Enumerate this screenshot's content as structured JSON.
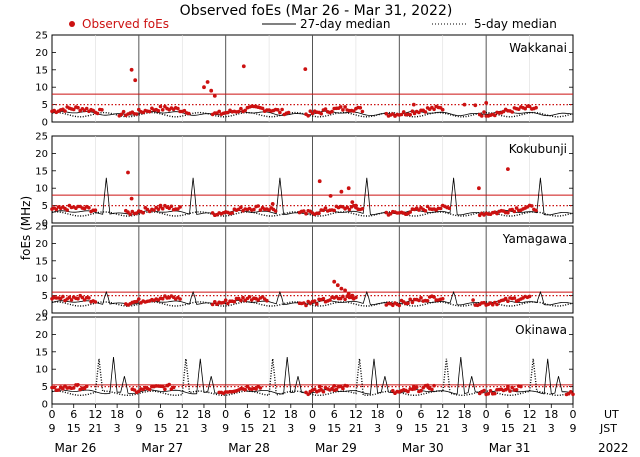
{
  "title": "Observed foEs (Mar 26 - Mar 31, 2022)",
  "legend": {
    "observed": "Observed foEs",
    "median27": "27-day median",
    "median5": "5-day median"
  },
  "colors": {
    "observed": "#cc1111",
    "threshold": "#cc1111",
    "median27": "#000000",
    "median5": "#000000",
    "day_divider": "#555555"
  },
  "chart_data": {
    "type": "scatter",
    "title": "Observed foEs (Mar 26 - Mar 31, 2022)",
    "ylabel": "foEs (MHz)",
    "ylim": [
      0,
      25
    ],
    "yticks": [
      0,
      5,
      10,
      15,
      20,
      25
    ],
    "xlim_hours": [
      0,
      144
    ],
    "x_ticks_ut": [
      "0",
      "6",
      "12",
      "18",
      "0",
      "6",
      "12",
      "18",
      "0",
      "6",
      "12",
      "18",
      "0",
      "6",
      "12",
      "18",
      "0",
      "6",
      "12",
      "18",
      "0",
      "6",
      "12",
      "18",
      "0"
    ],
    "x_ticks_jst": [
      "9",
      "15",
      "21",
      "3",
      "9",
      "15",
      "21",
      "3",
      "9",
      "15",
      "21",
      "3",
      "9",
      "15",
      "21",
      "3",
      "9",
      "15",
      "21",
      "3",
      "9",
      "15",
      "21",
      "3",
      "9"
    ],
    "ut_label": "UT",
    "jst_label": "JST",
    "days": [
      "Mar 26",
      "Mar 27",
      "Mar 28",
      "Mar 29",
      "Mar 30",
      "Mar 31"
    ],
    "year": "2022",
    "panels": [
      {
        "station": "Wakkanai",
        "threshold_solid": 8,
        "threshold_dotted": 5,
        "base_median": 2.5,
        "observed_spikes": [
          [
            22,
            15
          ],
          [
            23,
            12
          ],
          [
            42,
            10
          ],
          [
            43,
            11.5
          ],
          [
            44,
            9
          ],
          [
            45,
            7.5
          ],
          [
            53,
            16
          ],
          [
            70,
            15.2
          ],
          [
            100,
            5
          ],
          [
            114,
            5
          ],
          [
            120,
            5.5
          ],
          [
            117,
            4.8
          ]
        ],
        "observed_gaps": [
          [
            14,
            18
          ],
          [
            38,
            44
          ],
          [
            66,
            70
          ],
          [
            86,
            92
          ],
          [
            108,
            118
          ],
          [
            134,
            144
          ]
        ],
        "median27_spikes": [],
        "median5_spikes": []
      },
      {
        "station": "Kokubunji",
        "threshold_solid": 8,
        "threshold_dotted": 5,
        "base_median": 3,
        "observed_spikes": [
          [
            21,
            14.5
          ],
          [
            22,
            7
          ],
          [
            30,
            5
          ],
          [
            61,
            5.5
          ],
          [
            74,
            12
          ],
          [
            77,
            7.8
          ],
          [
            80,
            9
          ],
          [
            82,
            10
          ],
          [
            83,
            6
          ],
          [
            84,
            5
          ],
          [
            118,
            10
          ],
          [
            126,
            15.5
          ]
        ],
        "observed_gaps": [
          [
            12,
            20
          ],
          [
            36,
            44
          ],
          [
            62,
            68
          ],
          [
            86,
            92
          ],
          [
            110,
            118
          ],
          [
            134,
            144
          ]
        ],
        "median27_spikes": [
          [
            15,
            13
          ],
          [
            39,
            13
          ],
          [
            63,
            13
          ],
          [
            87,
            13
          ],
          [
            111,
            13
          ],
          [
            135,
            13
          ]
        ],
        "median5_spikes": []
      },
      {
        "station": "Yamagawa",
        "threshold_solid": 6,
        "threshold_dotted": 5,
        "base_median": 3,
        "observed_spikes": [
          [
            78,
            9
          ],
          [
            79,
            8
          ],
          [
            80,
            7
          ],
          [
            81,
            6.5
          ],
          [
            82,
            5.5
          ],
          [
            83,
            5
          ]
        ],
        "observed_gaps": [
          [
            12,
            20
          ],
          [
            36,
            44
          ],
          [
            60,
            68
          ],
          [
            84,
            92
          ],
          [
            108,
            116
          ],
          [
            132,
            144
          ]
        ],
        "median27_spikes": [
          [
            15,
            6
          ],
          [
            39,
            6
          ],
          [
            63,
            6
          ],
          [
            87,
            6
          ],
          [
            111,
            6
          ],
          [
            135,
            6
          ]
        ],
        "median5_spikes": []
      },
      {
        "station": "Okinawa",
        "threshold_solid": 5.5,
        "threshold_dotted": 5,
        "base_median": 3.5,
        "observed_spikes": [
          [
            74,
            5
          ],
          [
            78,
            5.2
          ],
          [
            100,
            5
          ],
          [
            104,
            4.8
          ],
          [
            126,
            5
          ]
        ],
        "observed_gaps": [
          [
            10,
            22
          ],
          [
            34,
            46
          ],
          [
            58,
            70
          ],
          [
            82,
            94
          ],
          [
            106,
            118
          ],
          [
            130,
            142
          ]
        ],
        "median27_spikes": [
          [
            17,
            13.5
          ],
          [
            41,
            13
          ],
          [
            65,
            13.5
          ],
          [
            89,
            13
          ],
          [
            113,
            13.5
          ],
          [
            137,
            13
          ],
          [
            20,
            8
          ],
          [
            44,
            8
          ],
          [
            68,
            8
          ],
          [
            92,
            8
          ],
          [
            116,
            8
          ],
          [
            140,
            8
          ]
        ],
        "median5_spikes": [
          [
            13,
            13
          ],
          [
            37,
            13
          ],
          [
            61,
            13
          ],
          [
            85,
            13
          ],
          [
            109,
            13
          ],
          [
            133,
            13
          ]
        ]
      }
    ]
  }
}
